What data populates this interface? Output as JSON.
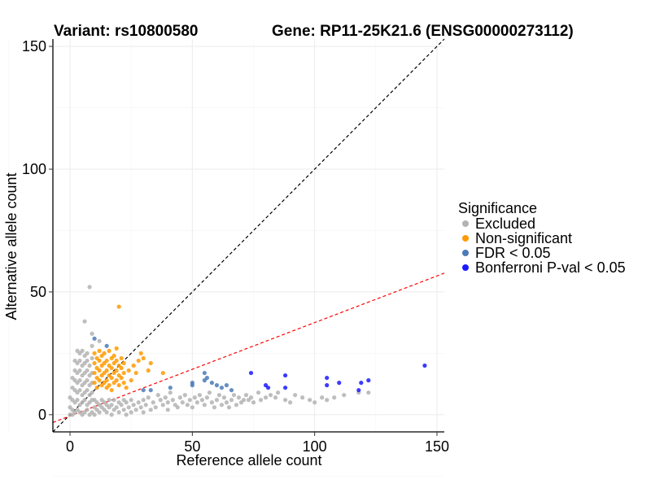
{
  "chart_data": {
    "type": "scatter",
    "title_left": "Variant: rs10800580",
    "title_right": "Gene: RP11-25K21.6 (ENSG00000273112)",
    "xlabel": "Reference allele count",
    "ylabel": "Alternative allele count",
    "xlim": [
      -7,
      153
    ],
    "ylim": [
      -7,
      153
    ],
    "xticks": [
      0,
      50,
      100,
      150
    ],
    "yticks": [
      0,
      50,
      100,
      150
    ],
    "grid": true,
    "reference_lines": [
      {
        "name": "identity",
        "style": "dashed",
        "color": "#000000",
        "intercept": 0,
        "slope": 1
      },
      {
        "name": "fit",
        "style": "dashed",
        "color": "#ff0000",
        "intercept": -0.5,
        "slope": 0.38
      }
    ],
    "legend": {
      "title": "Significance",
      "position": "right",
      "items": [
        {
          "label": "Excluded",
          "color": "#b3b3b3"
        },
        {
          "label": "Non-significant",
          "color": "#ff9a00"
        },
        {
          "label": "FDR < 0.05",
          "color": "#4a7ab8"
        },
        {
          "label": "Bonferroni P-val < 0.05",
          "color": "#1a1aff"
        }
      ]
    },
    "series": [
      {
        "name": "Excluded",
        "color": "#b3b3b3",
        "points": [
          [
            8,
            52
          ],
          [
            6,
            38
          ],
          [
            9,
            33
          ],
          [
            12,
            30
          ],
          [
            9,
            28
          ],
          [
            3,
            26
          ],
          [
            4,
            25
          ],
          [
            5,
            26
          ],
          [
            6,
            24
          ],
          [
            7,
            25
          ],
          [
            2,
            22
          ],
          [
            3,
            21
          ],
          [
            4,
            22
          ],
          [
            5,
            20
          ],
          [
            6,
            21
          ],
          [
            7,
            22
          ],
          [
            8,
            20
          ],
          [
            9,
            23
          ],
          [
            2,
            18
          ],
          [
            3,
            17
          ],
          [
            4,
            18
          ],
          [
            5,
            16
          ],
          [
            6,
            17
          ],
          [
            7,
            18
          ],
          [
            8,
            16
          ],
          [
            9,
            17
          ],
          [
            1,
            15
          ],
          [
            2,
            14
          ],
          [
            3,
            13
          ],
          [
            4,
            14
          ],
          [
            5,
            12
          ],
          [
            6,
            13
          ],
          [
            7,
            14
          ],
          [
            8,
            12
          ],
          [
            9,
            13
          ],
          [
            1,
            11
          ],
          [
            2,
            10
          ],
          [
            3,
            9
          ],
          [
            4,
            10
          ],
          [
            5,
            8
          ],
          [
            6,
            9
          ],
          [
            7,
            10
          ],
          [
            8,
            8
          ],
          [
            9,
            9
          ],
          [
            0,
            7
          ],
          [
            1,
            6
          ],
          [
            2,
            5
          ],
          [
            3,
            6
          ],
          [
            4,
            4
          ],
          [
            5,
            5
          ],
          [
            6,
            6
          ],
          [
            7,
            4
          ],
          [
            8,
            5
          ],
          [
            9,
            6
          ],
          [
            0,
            3
          ],
          [
            1,
            2
          ],
          [
            2,
            1
          ],
          [
            3,
            2
          ],
          [
            4,
            1
          ],
          [
            5,
            0
          ],
          [
            6,
            1
          ],
          [
            7,
            2
          ],
          [
            8,
            0
          ],
          [
            9,
            1
          ],
          [
            0,
            0
          ],
          [
            1,
            0
          ],
          [
            10,
            0
          ],
          [
            10,
            3
          ],
          [
            10,
            6
          ],
          [
            11,
            2
          ],
          [
            11,
            5
          ],
          [
            12,
            1
          ],
          [
            12,
            4
          ],
          [
            13,
            3
          ],
          [
            13,
            6
          ],
          [
            14,
            2
          ],
          [
            14,
            5
          ],
          [
            15,
            1
          ],
          [
            15,
            4
          ],
          [
            16,
            3
          ],
          [
            16,
            6
          ],
          [
            17,
            0
          ],
          [
            17,
            4
          ],
          [
            18,
            2
          ],
          [
            18,
            6
          ],
          [
            19,
            3
          ],
          [
            20,
            1
          ],
          [
            20,
            5
          ],
          [
            21,
            4
          ],
          [
            22,
            2
          ],
          [
            22,
            6
          ],
          [
            23,
            0
          ],
          [
            23,
            5
          ],
          [
            24,
            3
          ],
          [
            25,
            1
          ],
          [
            25,
            6
          ],
          [
            26,
            4
          ],
          [
            27,
            2
          ],
          [
            28,
            5
          ],
          [
            29,
            3
          ],
          [
            30,
            1
          ],
          [
            30,
            6
          ],
          [
            31,
            4
          ],
          [
            32,
            7
          ],
          [
            33,
            2
          ],
          [
            34,
            5
          ],
          [
            35,
            3
          ],
          [
            36,
            8
          ],
          [
            37,
            6
          ],
          [
            38,
            4
          ],
          [
            39,
            7
          ],
          [
            40,
            2
          ],
          [
            40,
            5
          ],
          [
            41,
            9
          ],
          [
            42,
            6
          ],
          [
            43,
            4
          ],
          [
            44,
            3
          ],
          [
            45,
            7
          ],
          [
            46,
            5
          ],
          [
            47,
            8
          ],
          [
            48,
            4
          ],
          [
            49,
            6
          ],
          [
            50,
            3
          ],
          [
            51,
            7
          ],
          [
            52,
            5
          ],
          [
            53,
            8
          ],
          [
            54,
            6
          ],
          [
            55,
            4
          ],
          [
            56,
            7
          ],
          [
            57,
            9
          ],
          [
            58,
            5
          ],
          [
            59,
            3
          ],
          [
            60,
            6
          ],
          [
            61,
            8
          ],
          [
            62,
            4
          ],
          [
            63,
            7
          ],
          [
            64,
            5
          ],
          [
            65,
            3
          ],
          [
            66,
            6
          ],
          [
            67,
            8
          ],
          [
            68,
            4
          ],
          [
            69,
            7
          ],
          [
            70,
            5
          ],
          [
            71,
            6
          ],
          [
            72,
            8
          ],
          [
            73,
            6
          ],
          [
            74,
            7
          ],
          [
            75,
            5
          ],
          [
            77,
            9
          ],
          [
            78,
            6
          ],
          [
            80,
            7
          ],
          [
            82,
            8
          ],
          [
            84,
            7
          ],
          [
            85,
            9
          ],
          [
            88,
            6
          ],
          [
            90,
            5
          ],
          [
            92,
            8
          ],
          [
            95,
            7
          ],
          [
            98,
            6
          ],
          [
            100,
            5
          ],
          [
            103,
            7
          ],
          [
            105,
            6
          ],
          [
            108,
            7
          ],
          [
            112,
            8
          ],
          [
            118,
            9
          ],
          [
            122,
            9
          ]
        ]
      },
      {
        "name": "Non-significant",
        "color": "#ff9a00",
        "points": [
          [
            20,
            44
          ],
          [
            10,
            25
          ],
          [
            11,
            23
          ],
          [
            12,
            26
          ],
          [
            13,
            24
          ],
          [
            14,
            25
          ],
          [
            15,
            22
          ],
          [
            16,
            26
          ],
          [
            17,
            23
          ],
          [
            18,
            24
          ],
          [
            19,
            27
          ],
          [
            10,
            21
          ],
          [
            11,
            19
          ],
          [
            12,
            22
          ],
          [
            13,
            20
          ],
          [
            14,
            21
          ],
          [
            15,
            18
          ],
          [
            16,
            20
          ],
          [
            17,
            19
          ],
          [
            18,
            21
          ],
          [
            19,
            22
          ],
          [
            20,
            20
          ],
          [
            21,
            23
          ],
          [
            22,
            21
          ],
          [
            10,
            17
          ],
          [
            11,
            15
          ],
          [
            12,
            18
          ],
          [
            13,
            16
          ],
          [
            14,
            17
          ],
          [
            15,
            14
          ],
          [
            16,
            16
          ],
          [
            17,
            15
          ],
          [
            18,
            17
          ],
          [
            19,
            18
          ],
          [
            20,
            16
          ],
          [
            21,
            19
          ],
          [
            22,
            17
          ],
          [
            10,
            13
          ],
          [
            11,
            11
          ],
          [
            12,
            14
          ],
          [
            13,
            12
          ],
          [
            14,
            13
          ],
          [
            15,
            11
          ],
          [
            16,
            12
          ],
          [
            17,
            10
          ],
          [
            18,
            13
          ],
          [
            19,
            14
          ],
          [
            20,
            12
          ],
          [
            21,
            15
          ],
          [
            22,
            13
          ],
          [
            23,
            11
          ],
          [
            24,
            18
          ],
          [
            25,
            14
          ],
          [
            26,
            20
          ],
          [
            27,
            17
          ],
          [
            28,
            22
          ],
          [
            29,
            25
          ],
          [
            30,
            23
          ],
          [
            32,
            18
          ],
          [
            33,
            21
          ],
          [
            38,
            17
          ]
        ]
      },
      {
        "name": "FDR < 0.05",
        "color": "#4a7ab8",
        "points": [
          [
            10,
            31
          ],
          [
            15,
            28
          ],
          [
            33,
            10
          ],
          [
            41,
            11
          ],
          [
            50,
            13
          ],
          [
            50,
            12
          ],
          [
            55,
            17
          ],
          [
            55,
            14
          ],
          [
            56,
            15
          ],
          [
            58,
            13
          ],
          [
            60,
            12
          ],
          [
            62,
            11
          ],
          [
            64,
            12
          ],
          [
            66,
            10
          ],
          [
            30,
            10
          ]
        ]
      },
      {
        "name": "Bonferroni P-val < 0.05",
        "color": "#1a1aff",
        "points": [
          [
            74,
            17
          ],
          [
            80,
            12
          ],
          [
            81,
            11
          ],
          [
            88,
            16
          ],
          [
            88,
            11
          ],
          [
            105,
            15
          ],
          [
            105,
            12
          ],
          [
            110,
            13
          ],
          [
            118,
            10
          ],
          [
            119,
            13
          ],
          [
            122,
            14
          ],
          [
            145,
            20
          ]
        ]
      }
    ]
  }
}
